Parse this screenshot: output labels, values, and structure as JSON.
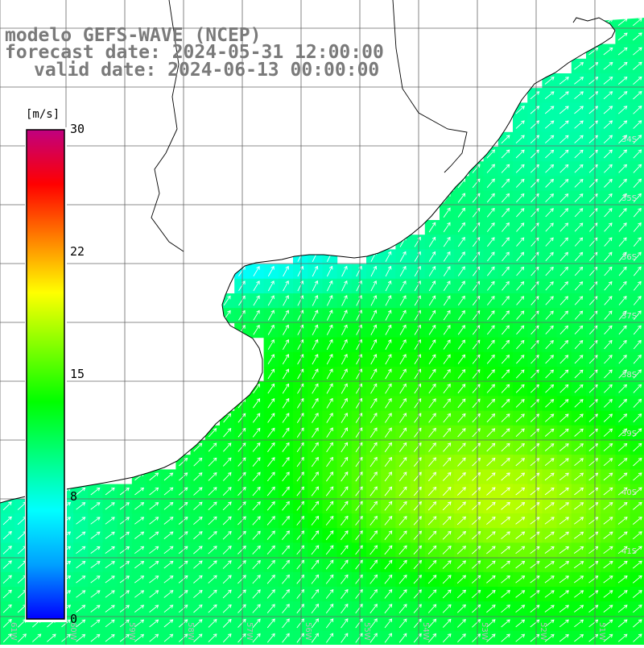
{
  "title": {
    "model": "modelo GEFS-WAVE (NCEP)",
    "forecast": "forecast date: 2024-05-31 12:00:00",
    "valid": "valid date: 2024-06-13 00:00:00"
  },
  "colorbar": {
    "unit": "[m/s]",
    "ticks": [
      "30",
      "22",
      "15",
      "8",
      "0"
    ],
    "tick_values": [
      30,
      22,
      15,
      8,
      0
    ],
    "colors": [
      "#0000ff",
      "#00a0ff",
      "#00ffff",
      "#00ff80",
      "#00ff00",
      "#80ff00",
      "#ffff00",
      "#ff8000",
      "#ff0000",
      "#c00080"
    ],
    "range": [
      0,
      30
    ]
  },
  "map": {
    "variable": "wind speed",
    "units": "m/s",
    "arrow_color": "#ffffff",
    "land_color": "#ffffff",
    "coastline_color": "#000000",
    "grid_color": "#666666",
    "lon_labels": [
      "61W",
      "60W",
      "59W",
      "58W",
      "57W",
      "56W",
      "55W",
      "54W",
      "53W",
      "52W",
      "51W"
    ],
    "lat_labels": [
      "34S",
      "35S",
      "36S",
      "37S",
      "38S",
      "39S",
      "40S",
      "41S"
    ]
  }
}
